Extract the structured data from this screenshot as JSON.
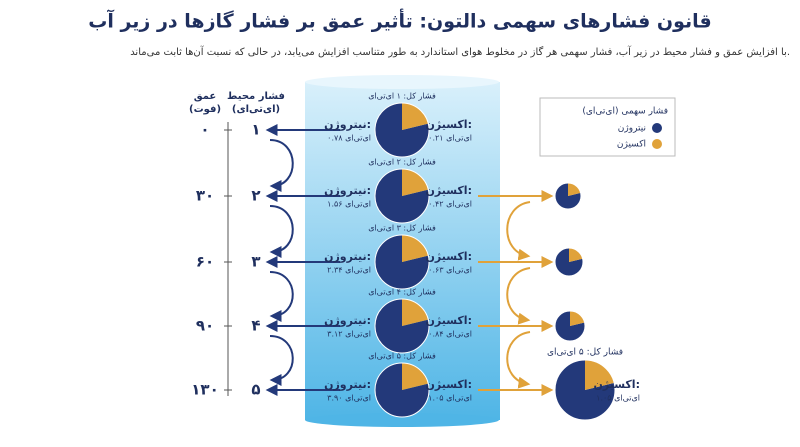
{
  "title": "قانون فشارهای سهمی دالتون: تأثیر عمق بر فشار گازها در زیر آب",
  "subtitle": "با افزایش عمق و فشار محیط در زیر آب، فشار سهمی هر گاز در مخلوط هوای استاندارد به طور متناسب افزایش می‌یابد، در حالی که نسبت آن‌ها ثابت می‌ماند.",
  "columns": {
    "depth": "عمق",
    "depth_unit": "(فوت)",
    "pressure": "فشار محیط",
    "pressure_unit": "(ای‌تی‌ای)"
  },
  "legend": {
    "title": "فشار سهمی (ای‌تی‌ای)",
    "items": [
      {
        "label": "نیتروژن",
        "color": "#23397a"
      },
      {
        "label": "اکسیژن",
        "color": "#e0a23a"
      }
    ]
  },
  "rows": [
    {
      "depth": "۰",
      "pressure": "۱",
      "total": "فشار کل: ۱ ای‌تی‌ای",
      "nitrogen": {
        "label": "نیتروژن:",
        "value": 0.78,
        "value_label": "۰.۷۸ ای‌تی‌ای"
      },
      "oxygen": {
        "label": "اکسیژن:",
        "value": 0.21,
        "value_label": "۰.۲۱ ای‌تی‌ای"
      }
    },
    {
      "depth": "۳۰",
      "pressure": "۲",
      "total": "فشار کل: ۲ ای‌تی‌ای",
      "nitrogen": {
        "label": "نیتروژن:",
        "value": 1.56,
        "value_label": "۱.۵۶ ای‌تی‌ای"
      },
      "oxygen": {
        "label": "اکسیژن:",
        "value": 0.42,
        "value_label": "۰.۴۲ ای‌تی‌ای"
      }
    },
    {
      "depth": "۶۰",
      "pressure": "۳",
      "total": "فشار کل: ۳ ای‌تی‌ای",
      "nitrogen": {
        "label": "نیتروژن:",
        "value": 2.34,
        "value_label": "۲.۳۴ ای‌تی‌ای"
      },
      "oxygen": {
        "label": "اکسیژن:",
        "value": 0.63,
        "value_label": "۰.۶۳ ای‌تی‌ای"
      }
    },
    {
      "depth": "۹۰",
      "pressure": "۴",
      "total": "فشار کل: ۴ ای‌تی‌ای",
      "nitrogen": {
        "label": "نیتروژن:",
        "value": 3.12,
        "value_label": "۳.۱۲ ای‌تی‌ای"
      },
      "oxygen": {
        "label": "اکسیژن:",
        "value": 0.84,
        "value_label": "۰.۸۴ ای‌تی‌ای"
      }
    },
    {
      "depth": "۱۳۰",
      "pressure": "۵",
      "total": "فشار کل: ۵ ای‌تی‌ای",
      "nitrogen": {
        "label": "نیتروژن:",
        "value": 3.9,
        "value_label": "۳.۹۰ ای‌تی‌ای"
      },
      "oxygen": {
        "label": "اکسیژن:",
        "value": 1.05,
        "value_label": "۱.۰۵ ای‌تی‌ای"
      }
    }
  ]
}
